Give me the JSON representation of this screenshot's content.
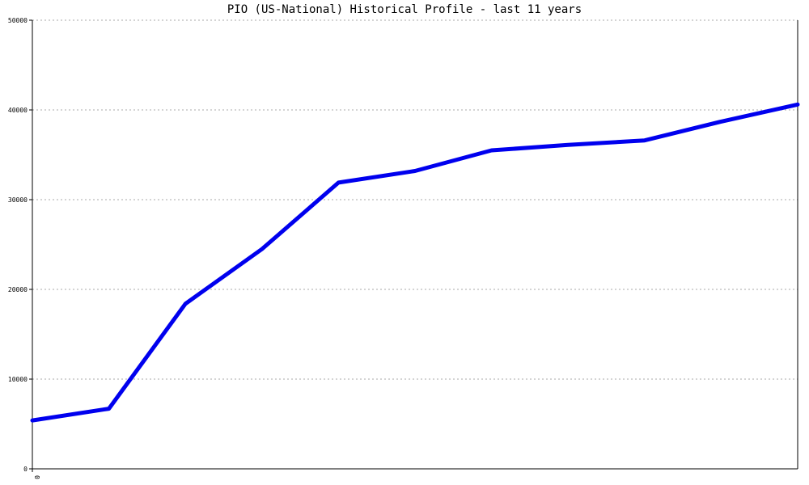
{
  "chart_data": {
    "type": "line",
    "title": "PIO (US-National) Historical Profile - last 11 years",
    "xlabel": "",
    "ylabel": "",
    "x_tick_labels": [
      "0"
    ],
    "y_ticks": [
      0,
      10000,
      20000,
      30000,
      40000,
      50000
    ],
    "ylim": [
      0,
      50000
    ],
    "grid": true,
    "grid_style": "dotted-horizontal",
    "line_color": "#0000ee",
    "series": [
      {
        "values": [
          5400,
          6700,
          18400,
          24500,
          31900,
          33200,
          35500,
          36100,
          36600,
          38700,
          40600
        ]
      }
    ]
  }
}
